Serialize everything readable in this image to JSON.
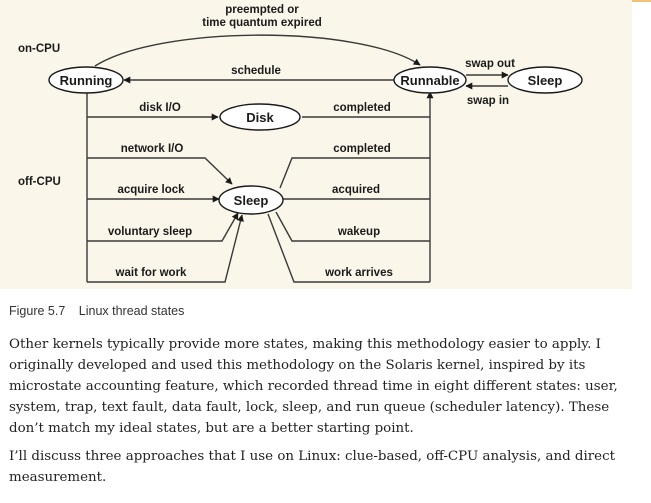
{
  "diagram": {
    "regions": {
      "on_cpu": "on-CPU",
      "off_cpu": "off-CPU"
    },
    "nodes": {
      "running": "Running",
      "runnable": "Runnable",
      "sleep_right": "Sleep",
      "disk": "Disk",
      "sleep_center": "Sleep"
    },
    "edges": {
      "preempted": "preempted or",
      "time_quantum": "time quantum expired",
      "schedule": "schedule",
      "swap_out": "swap out",
      "swap_in": "swap in",
      "disk_io": "disk I/O",
      "completed_disk": "completed",
      "network_io": "network I/O",
      "completed_network": "completed",
      "acquire_lock": "acquire lock",
      "acquired": "acquired",
      "voluntary_sleep": "voluntary sleep",
      "wakeup": "wakeup",
      "wait_for_work": "wait for work",
      "work_arrives": "work arrives"
    }
  },
  "caption": {
    "number": "Figure 5.7",
    "title": "Linux thread states"
  },
  "paragraphs": {
    "p1": "Other kernels typically provide more states, making this methodology easier to apply. I originally developed and used this methodology on the Solaris kernel, inspired by its microstate accounting feature, which recorded thread time in eight different states: user, system, trap, text fault, data fault, lock, sleep, and run queue (scheduler latency). These don’t match my ideal states, but are a better starting point.",
    "p2": "I’ll discuss three approaches that I use on Linux: clue-based, off-CPU analysis, and direct measurement."
  }
}
